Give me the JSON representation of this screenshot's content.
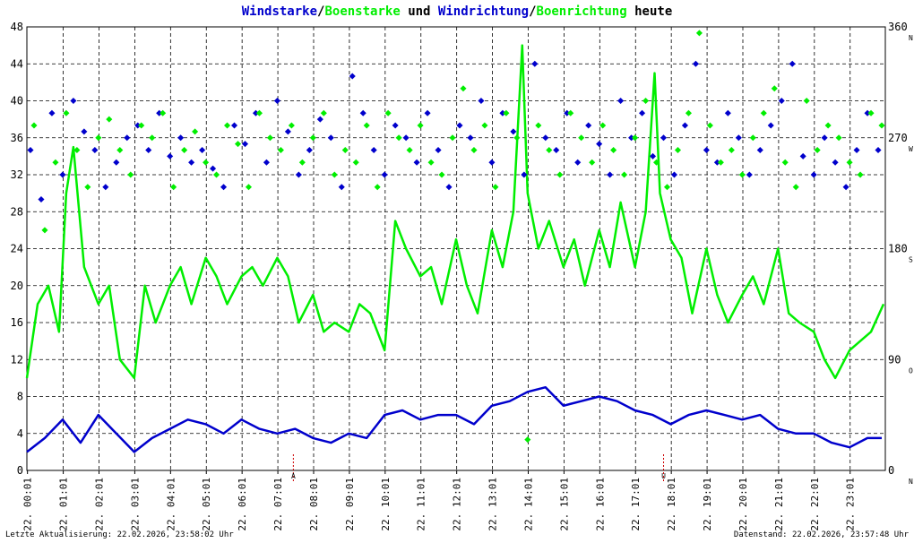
{
  "title": {
    "parts": [
      {
        "text": "Windstarke",
        "color": "#0000cc"
      },
      {
        "text": "/",
        "color": "#000000"
      },
      {
        "text": "Boenstarke",
        "color": "#00ee00"
      },
      {
        "text": " und ",
        "color": "#000000"
      },
      {
        "text": "Windrichtung",
        "color": "#0000cc"
      },
      {
        "text": "/",
        "color": "#000000"
      },
      {
        "text": "Boenrichtung",
        "color": "#00ee00"
      },
      {
        "text": " heute",
        "color": "#000000"
      }
    ]
  },
  "footer": {
    "left": "Letzte Aktualisierung: 22.02.2026, 23:58:02 Uhr",
    "right": "Datenstand: 22.02.2026, 23:57:48 Uhr"
  },
  "chart_data": {
    "type": "line",
    "y_left": {
      "min": 0,
      "max": 48,
      "ticks": [
        "0",
        "4",
        "8",
        "12",
        "16",
        "20",
        "24",
        "28",
        "32",
        "36",
        "40",
        "44",
        "48"
      ]
    },
    "y_right": {
      "min": 0,
      "max": 360,
      "ticks": [
        "0",
        "90",
        "180",
        "270",
        "360"
      ],
      "directions": [
        "N",
        "O",
        "S",
        "W",
        "N"
      ]
    },
    "x_labels": [
      "22. 00:01",
      "22. 01:01",
      "22. 02:01",
      "22. 03:01",
      "22. 04:01",
      "22. 05:01",
      "22. 06:01",
      "22. 07:01",
      "22. 08:01",
      "22. 09:01",
      "22. 10:01",
      "22. 11:01",
      "22. 12:01",
      "22. 13:01",
      "22. 14:01",
      "22. 15:01",
      "22. 16:01",
      "22. 17:01",
      "22. 18:01",
      "22. 19:01",
      "22. 20:01",
      "22. 21:01",
      "22. 22:01",
      "22. 23:01"
    ],
    "x_range_hours": [
      0,
      24
    ],
    "markers": [
      {
        "label": "A",
        "hour": 7.45
      },
      {
        "label": "U",
        "hour": 17.8
      }
    ],
    "colors": {
      "wind": "#0000cc",
      "gust": "#00ee00",
      "grid": "#000000",
      "marker": "#cc0000"
    },
    "series": [
      {
        "name": "Windstarke",
        "axis": "left",
        "style": "line",
        "x": [
          0,
          0.5,
          1,
          1.5,
          2,
          2.5,
          3,
          3.5,
          4,
          4.5,
          5,
          5.5,
          6,
          6.5,
          7,
          7.5,
          8,
          8.5,
          9,
          9.5,
          10,
          10.5,
          11,
          11.5,
          12,
          12.5,
          13,
          13.5,
          14,
          14.5,
          15,
          15.5,
          16,
          16.5,
          17,
          17.5,
          18,
          18.5,
          19,
          19.5,
          20,
          20.5,
          21,
          21.5,
          22,
          22.5,
          23,
          23.5,
          23.9
        ],
        "values": [
          2,
          3.5,
          5.5,
          3,
          6,
          4,
          2,
          3.5,
          4.5,
          5.5,
          5,
          4,
          5.5,
          4.5,
          4,
          4.5,
          3.5,
          3,
          4,
          3.5,
          6,
          6.5,
          5.5,
          6,
          6,
          5,
          7,
          7.5,
          8.5,
          9,
          7,
          7.5,
          8,
          7.5,
          6.5,
          6,
          5,
          6,
          6.5,
          6,
          5.5,
          6,
          4.5,
          4,
          4,
          3,
          2.5,
          3.5,
          3.5
        ]
      },
      {
        "name": "Boenstarke",
        "axis": "left",
        "style": "line",
        "x": [
          0,
          0.3,
          0.6,
          0.9,
          1.1,
          1.3,
          1.6,
          2,
          2.3,
          2.6,
          3,
          3.3,
          3.6,
          4,
          4.3,
          4.6,
          5,
          5.3,
          5.6,
          6,
          6.3,
          6.6,
          7,
          7.3,
          7.6,
          8,
          8.3,
          8.6,
          9,
          9.3,
          9.6,
          10,
          10.3,
          10.6,
          11,
          11.3,
          11.6,
          12,
          12.3,
          12.6,
          13,
          13.3,
          13.6,
          13.85,
          14,
          14.3,
          14.6,
          15,
          15.3,
          15.6,
          16,
          16.3,
          16.6,
          17,
          17.3,
          17.55,
          17.7,
          18,
          18.3,
          18.6,
          19,
          19.3,
          19.6,
          20,
          20.3,
          20.6,
          21,
          21.3,
          21.6,
          22,
          22.3,
          22.6,
          23,
          23.3,
          23.6,
          23.95
        ],
        "values": [
          10,
          18,
          20,
          15,
          30,
          35,
          22,
          18,
          20,
          12,
          10,
          20,
          16,
          20,
          22,
          18,
          23,
          21,
          18,
          21,
          22,
          20,
          23,
          21,
          16,
          19,
          15,
          16,
          15,
          18,
          17,
          13,
          27,
          24,
          21,
          22,
          18,
          25,
          20,
          17,
          26,
          22,
          28,
          46,
          30,
          24,
          27,
          22,
          25,
          20,
          26,
          22,
          29,
          22,
          28,
          43,
          30,
          25,
          23,
          17,
          24,
          19,
          16,
          19,
          21,
          18,
          24,
          17,
          16,
          15,
          12,
          10,
          13,
          14,
          15,
          18
        ]
      },
      {
        "name": "Windrichtung",
        "axis": "right",
        "style": "points",
        "x": [
          0.1,
          0.4,
          0.7,
          1.0,
          1.3,
          1.6,
          1.9,
          2.2,
          2.5,
          2.8,
          3.1,
          3.4,
          3.7,
          4.0,
          4.3,
          4.6,
          4.9,
          5.2,
          5.5,
          5.8,
          6.1,
          6.4,
          6.7,
          7.0,
          7.3,
          7.6,
          7.9,
          8.2,
          8.5,
          8.8,
          9.1,
          9.4,
          9.7,
          10.0,
          10.3,
          10.6,
          10.9,
          11.2,
          11.5,
          11.8,
          12.1,
          12.4,
          12.7,
          13.0,
          13.3,
          13.6,
          13.9,
          14.2,
          14.5,
          14.8,
          15.1,
          15.4,
          15.7,
          16.0,
          16.3,
          16.6,
          16.9,
          17.2,
          17.5,
          17.8,
          18.1,
          18.4,
          18.7,
          19.0,
          19.3,
          19.6,
          19.9,
          20.2,
          20.5,
          20.8,
          21.1,
          21.4,
          21.7,
          22.0,
          22.3,
          22.6,
          22.9,
          23.2,
          23.5,
          23.8
        ],
        "values": [
          260,
          220,
          290,
          240,
          300,
          275,
          260,
          230,
          250,
          270,
          280,
          260,
          290,
          255,
          270,
          250,
          260,
          245,
          230,
          280,
          265,
          290,
          250,
          300,
          275,
          240,
          260,
          285,
          270,
          230,
          320,
          290,
          260,
          240,
          280,
          270,
          250,
          290,
          260,
          230,
          280,
          270,
          300,
          250,
          290,
          275,
          240,
          330,
          270,
          260,
          290,
          250,
          280,
          265,
          240,
          300,
          270,
          290,
          255,
          270,
          240,
          280,
          330,
          260,
          250,
          290,
          270,
          240,
          260,
          280,
          300,
          330,
          255,
          240,
          270,
          250,
          230,
          260,
          290,
          260
        ]
      },
      {
        "name": "Boenrichtung",
        "axis": "right",
        "style": "points",
        "x": [
          0.2,
          0.5,
          0.8,
          1.1,
          1.4,
          1.7,
          2.0,
          2.3,
          2.6,
          2.9,
          3.2,
          3.5,
          3.8,
          4.1,
          4.4,
          4.7,
          5.0,
          5.3,
          5.6,
          5.9,
          6.2,
          6.5,
          6.8,
          7.1,
          7.4,
          7.7,
          8.0,
          8.3,
          8.6,
          8.9,
          9.2,
          9.5,
          9.8,
          10.1,
          10.4,
          10.7,
          11.0,
          11.3,
          11.6,
          11.9,
          12.2,
          12.5,
          12.8,
          13.1,
          13.4,
          13.7,
          14.0,
          14.3,
          14.6,
          14.9,
          15.2,
          15.5,
          15.8,
          16.1,
          16.4,
          16.7,
          17.0,
          17.3,
          17.6,
          17.9,
          18.2,
          18.5,
          18.8,
          19.1,
          19.4,
          19.7,
          20.0,
          20.3,
          20.6,
          20.9,
          21.2,
          21.5,
          21.8,
          22.1,
          22.4,
          22.7,
          23.0,
          23.3,
          23.6,
          23.9
        ],
        "values": [
          280,
          195,
          250,
          290,
          260,
          230,
          270,
          285,
          260,
          240,
          280,
          270,
          290,
          230,
          260,
          275,
          250,
          240,
          280,
          265,
          230,
          290,
          270,
          260,
          280,
          250,
          270,
          290,
          240,
          260,
          250,
          280,
          230,
          290,
          270,
          260,
          280,
          250,
          240,
          270,
          310,
          260,
          280,
          230,
          290,
          270,
          25,
          280,
          260,
          240,
          290,
          270,
          250,
          280,
          260,
          240,
          270,
          300,
          250,
          230,
          260,
          290,
          355,
          280,
          250,
          260,
          240,
          270,
          290,
          310,
          250,
          230,
          300,
          260,
          280,
          270,
          250,
          240,
          290,
          280
        ]
      }
    ]
  }
}
